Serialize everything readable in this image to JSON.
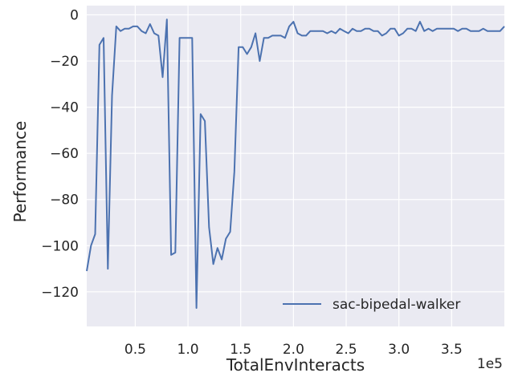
{
  "chart_data": {
    "type": "line",
    "title": "",
    "xlabel": "TotalEnvInteracts",
    "ylabel": "Performance",
    "x_multiplier_label": "1e5",
    "xlim": [
      0.04,
      4.0
    ],
    "ylim": [
      -135,
      4
    ],
    "x_ticks": [
      {
        "value": 0.5,
        "label": "0.5"
      },
      {
        "value": 1.0,
        "label": "1.0"
      },
      {
        "value": 1.5,
        "label": "1.5"
      },
      {
        "value": 2.0,
        "label": "2.0"
      },
      {
        "value": 2.5,
        "label": "2.5"
      },
      {
        "value": 3.0,
        "label": "3.0"
      },
      {
        "value": 3.5,
        "label": "3.5"
      }
    ],
    "y_ticks": [
      {
        "value": 0,
        "label": "0"
      },
      {
        "value": -20,
        "label": "−20"
      },
      {
        "value": -40,
        "label": "−40"
      },
      {
        "value": -60,
        "label": "−60"
      },
      {
        "value": -80,
        "label": "−80"
      },
      {
        "value": -100,
        "label": "−100"
      },
      {
        "value": -120,
        "label": "−120"
      }
    ],
    "grid": true,
    "legend_position": "lower-right",
    "colors": {
      "background": "#EAEAF2",
      "grid": "#FFFFFF",
      "series": "#4C72B0"
    },
    "series": [
      {
        "name": "sac-bipedal-walker",
        "x": [
          0.04,
          0.08,
          0.12,
          0.16,
          0.2,
          0.24,
          0.28,
          0.32,
          0.36,
          0.4,
          0.44,
          0.48,
          0.52,
          0.56,
          0.6,
          0.64,
          0.68,
          0.72,
          0.76,
          0.8,
          0.84,
          0.88,
          0.92,
          0.96,
          1.0,
          1.04,
          1.08,
          1.12,
          1.16,
          1.2,
          1.24,
          1.28,
          1.32,
          1.36,
          1.4,
          1.44,
          1.48,
          1.52,
          1.56,
          1.6,
          1.64,
          1.68,
          1.72,
          1.76,
          1.8,
          1.84,
          1.88,
          1.92,
          1.96,
          2.0,
          2.04,
          2.08,
          2.12,
          2.16,
          2.2,
          2.24,
          2.28,
          2.32,
          2.36,
          2.4,
          2.44,
          2.48,
          2.52,
          2.56,
          2.6,
          2.64,
          2.68,
          2.72,
          2.76,
          2.8,
          2.84,
          2.88,
          2.92,
          2.96,
          3.0,
          3.04,
          3.08,
          3.12,
          3.16,
          3.2,
          3.24,
          3.28,
          3.32,
          3.36,
          3.4,
          3.44,
          3.48,
          3.52,
          3.56,
          3.6,
          3.64,
          3.68,
          3.72,
          3.76,
          3.8,
          3.84,
          3.88,
          3.92,
          3.96,
          4.0
        ],
        "y": [
          -111,
          -100,
          -95,
          -13,
          -10,
          -110,
          -35,
          -5,
          -7,
          -6,
          -6,
          -5,
          -5,
          -7,
          -8,
          -4,
          -8,
          -9,
          -27,
          -2,
          -104,
          -103,
          -10,
          -10,
          -10,
          -10,
          -127,
          -43,
          -46,
          -92,
          -108,
          -101,
          -106,
          -97,
          -94,
          -68,
          -14,
          -14,
          -17,
          -14,
          -8,
          -20,
          -10,
          -10,
          -9,
          -9,
          -9,
          -10,
          -5,
          -3,
          -8,
          -9,
          -9,
          -7,
          -7,
          -7,
          -7,
          -8,
          -7,
          -8,
          -6,
          -7,
          -8,
          -6,
          -7,
          -7,
          -6,
          -6,
          -7,
          -7,
          -9,
          -8,
          -6,
          -6,
          -9,
          -8,
          -6,
          -6,
          -7,
          -3,
          -7,
          -6,
          -7,
          -6,
          -6,
          -6,
          -6,
          -6,
          -7,
          -6,
          -6,
          -7,
          -7,
          -7,
          -6,
          -7,
          -7,
          -7,
          -7,
          -5
        ]
      }
    ]
  }
}
